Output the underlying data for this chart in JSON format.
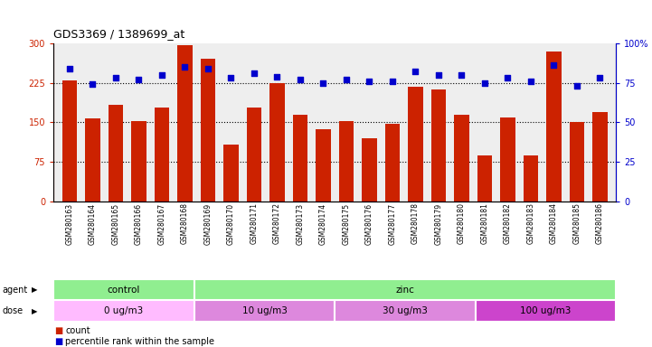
{
  "title": "GDS3369 / 1389699_at",
  "samples": [
    "GSM280163",
    "GSM280164",
    "GSM280165",
    "GSM280166",
    "GSM280167",
    "GSM280168",
    "GSM280169",
    "GSM280170",
    "GSM280171",
    "GSM280172",
    "GSM280173",
    "GSM280174",
    "GSM280175",
    "GSM280176",
    "GSM280177",
    "GSM280178",
    "GSM280179",
    "GSM280180",
    "GSM280181",
    "GSM280182",
    "GSM280183",
    "GSM280184",
    "GSM280185",
    "GSM280186"
  ],
  "counts": [
    230,
    157,
    183,
    153,
    178,
    296,
    270,
    107,
    178,
    225,
    165,
    137,
    152,
    120,
    148,
    218,
    213,
    165,
    87,
    160,
    87,
    285,
    150,
    170
  ],
  "percentile_ranks": [
    84,
    74,
    78,
    77,
    80,
    85,
    84,
    78,
    81,
    79,
    77,
    75,
    77,
    76,
    76,
    82,
    80,
    80,
    75,
    78,
    76,
    86,
    73,
    78
  ],
  "bar_color": "#cc2200",
  "dot_color": "#0000cc",
  "ylim_left": [
    0,
    300
  ],
  "ylim_right": [
    0,
    100
  ],
  "yticks_left": [
    0,
    75,
    150,
    225,
    300
  ],
  "ytick_labels_left": [
    "0",
    "75",
    "150",
    "225",
    "300"
  ],
  "yticks_right": [
    0,
    25,
    50,
    75,
    100
  ],
  "ytick_labels_right": [
    "0",
    "25",
    "50",
    "75",
    "100%"
  ],
  "hlines": [
    75,
    150,
    225
  ],
  "bg_color": "#ffffff",
  "plot_bg_color": "#eeeeee",
  "agent_control_color": "#90ee90",
  "agent_zinc_color": "#90ee90",
  "dose_0_color": "#ffbbff",
  "dose_10_color": "#dd88dd",
  "dose_30_color": "#dd88dd",
  "dose_100_color": "#cc44cc"
}
